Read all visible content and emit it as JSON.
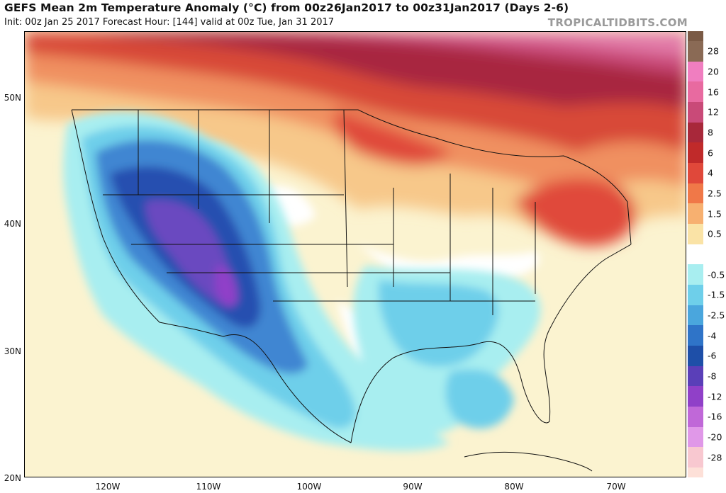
{
  "header": {
    "title": "GEFS Mean 2m Temperature Anomaly (°C) from 00z26Jan2017 to 00z31Jan2017 (Days 2-6)",
    "subtitle": "Init: 00z Jan 25 2017   Forecast Hour: [144]   valid at 00z Tue, Jan 31 2017",
    "brand": "TROPICALTIDBITS.COM"
  },
  "axes": {
    "lat_labels": [
      "50N",
      "40N",
      "30N",
      "20N"
    ],
    "lon_labels": [
      "120W",
      "110W",
      "100W",
      "90W",
      "80W",
      "70W"
    ]
  },
  "colorbar": {
    "levels": [
      {
        "label": "28",
        "color": "#8a6a55"
      },
      {
        "label": "20",
        "color": "#f07ec0"
      },
      {
        "label": "16",
        "color": "#e86aa0"
      },
      {
        "label": "12",
        "color": "#c94a78"
      },
      {
        "label": "8",
        "color": "#a8283a"
      },
      {
        "label": "6",
        "color": "#c02a2a"
      },
      {
        "label": "4",
        "color": "#e0483a"
      },
      {
        "label": "2.5",
        "color": "#f07848"
      },
      {
        "label": "1.5",
        "color": "#f7b070"
      },
      {
        "label": "0.5",
        "color": "#fae3a6"
      },
      {
        "label": "",
        "color": "#ffffff"
      },
      {
        "label": "-0.5",
        "color": "#a8eef0"
      },
      {
        "label": "-1.5",
        "color": "#6ecfea"
      },
      {
        "label": "-2.5",
        "color": "#4aa6dd"
      },
      {
        "label": "-4",
        "color": "#2f74c8"
      },
      {
        "label": "-6",
        "color": "#1e4fa8"
      },
      {
        "label": "-8",
        "color": "#5a3fb8"
      },
      {
        "label": "-12",
        "color": "#9040c8"
      },
      {
        "label": "-16",
        "color": "#c068d8"
      },
      {
        "label": "-20",
        "color": "#e098e8"
      },
      {
        "label": "-28",
        "color": "#f8c8d0"
      }
    ],
    "top_cap_color": "#7a5a45",
    "bottom_cap_color": "#fde0d8"
  },
  "map_colors": {
    "ocean_neutral": "#fbf3d0",
    "warm_light": "#f7c88a",
    "warm_mid": "#f09060",
    "warm_strong": "#d84838",
    "warm_deep": "#a82840",
    "warm_pink": "#e27aa8",
    "cold_light": "#a8eef0",
    "cold_mid": "#6ecfea",
    "cold_strong": "#3f86d2",
    "cold_deep": "#2850b0",
    "cold_purple": "#6a48c0",
    "neutral_white": "#ffffff",
    "border_line": "#111111"
  }
}
